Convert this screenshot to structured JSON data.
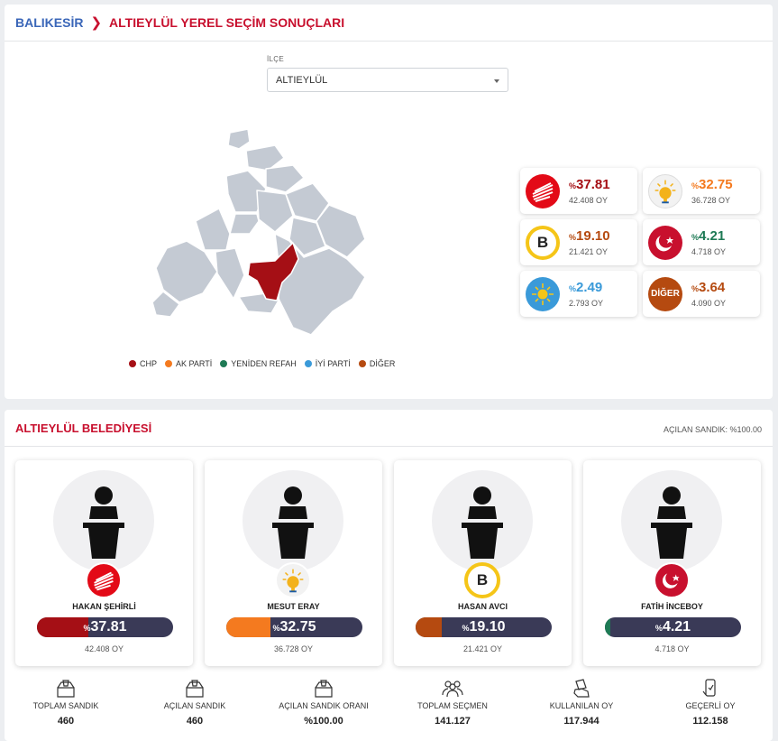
{
  "header": {
    "province": "BALIKESİR",
    "title": "ALTIEYLÜL YEREL SEÇİM SONUÇLARI"
  },
  "filter": {
    "label": "İLÇE",
    "selected": "ALTIEYLÜL"
  },
  "legend": [
    {
      "label": "CHP",
      "color": "#a50f15"
    },
    {
      "label": "AK PARTİ",
      "color": "#f47a1f"
    },
    {
      "label": "YENİDEN REFAH",
      "color": "#1e7a55"
    },
    {
      "label": "İYİ PARTİ",
      "color": "#3a9ad9"
    },
    {
      "label": "DİĞER",
      "color": "#b54a10"
    }
  ],
  "results": [
    {
      "party": "CHP",
      "pct": "37.81",
      "votes": "42.408 OY",
      "color": "#a50f15",
      "logo": "chp-logo-icon"
    },
    {
      "party": "AK PARTİ",
      "pct": "32.75",
      "votes": "36.728 OY",
      "color": "#f47a1f",
      "logo": "akparti-logo-icon"
    },
    {
      "party": "BAĞIMSIZ",
      "pct": "19.10",
      "votes": "21.421 OY",
      "color": "#b54a10",
      "logo": "b-logo-icon"
    },
    {
      "party": "YENİDEN REFAH",
      "pct": "4.21",
      "votes": "4.718 OY",
      "color": "#1e7a55",
      "logo": "yrp-logo-icon"
    },
    {
      "party": "İYİ PARTİ",
      "pct": "2.49",
      "votes": "2.793 OY",
      "color": "#3a9ad9",
      "logo": "iyi-logo-icon"
    },
    {
      "party": "DİĞER",
      "pct": "3.64",
      "votes": "4.090 OY",
      "color": "#b54a10",
      "logo": "diger-logo-icon",
      "logo_text": "DİĞER"
    }
  ],
  "percent_sign": "%",
  "section": {
    "title": "ALTIEYLÜL BELEDİYESİ",
    "opened": "AÇILAN SANDIK: %100.00"
  },
  "candidates": [
    {
      "name": "HAKAN ŞEHİRLİ",
      "pct": "37.81",
      "pct_value": 37.81,
      "votes": "42.408 OY",
      "color": "#a50f15"
    },
    {
      "name": "MESUT ERAY",
      "pct": "32.75",
      "pct_value": 32.75,
      "votes": "36.728 OY",
      "color": "#f47a1f"
    },
    {
      "name": "HASAN AVCI",
      "pct": "19.10",
      "pct_value": 19.1,
      "votes": "21.421 OY",
      "color": "#b54a10"
    },
    {
      "name": "FATİH İNCEBOY",
      "pct": "4.21",
      "pct_value": 4.21,
      "votes": "4.718 OY",
      "color": "#1e7a55"
    }
  ],
  "stats": [
    {
      "label": "TOPLAM SANDIK",
      "value": "460",
      "icon": "ballot-box-icon"
    },
    {
      "label": "AÇILAN SANDIK",
      "value": "460",
      "icon": "ballot-box-icon"
    },
    {
      "label": "AÇILAN SANDIK ORANI",
      "value": "%100.00",
      "icon": "ballot-box-icon"
    },
    {
      "label": "TOPLAM SEÇMEN",
      "value": "141.127",
      "icon": "people-icon"
    },
    {
      "label": "KULLANILAN OY",
      "value": "117.944",
      "icon": "vote-hand-icon"
    },
    {
      "label": "GEÇERLİ OY",
      "value": "112.158",
      "icon": "phone-check-icon"
    }
  ],
  "map": {
    "highlight_color": "#a50f15",
    "district_color": "#c4cad3"
  }
}
